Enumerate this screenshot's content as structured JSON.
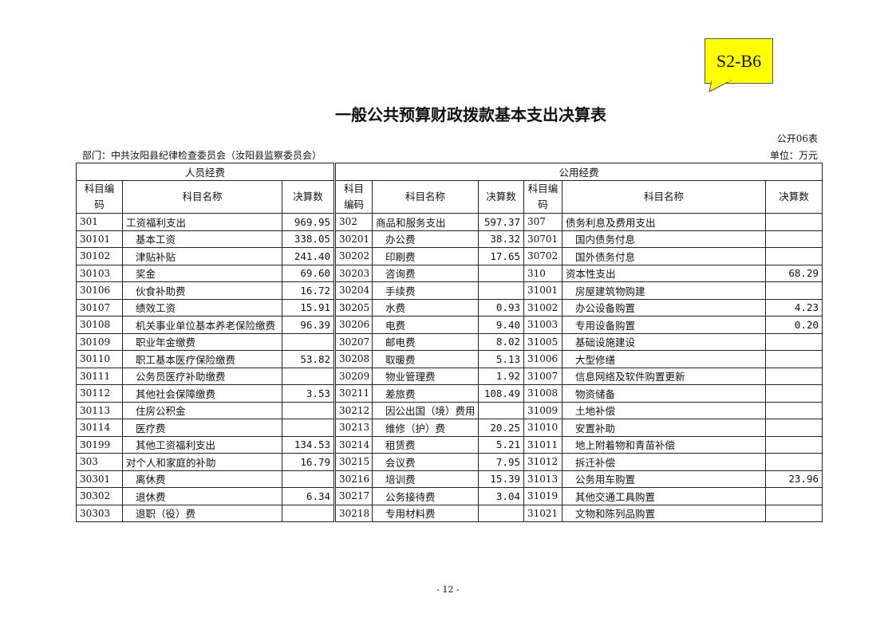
{
  "sticker": "S2-B6",
  "title": "一般公共预算财政拨款基本支出决算表",
  "table_no": "公开06表",
  "department": "部门：中共汝阳县纪律检查委员会（汝阳县监察委员会）",
  "unit": "单位：万元",
  "headers": {
    "personnel": "人员经费",
    "public": "公用经费",
    "code_l": "科目编码",
    "code": "科目编码",
    "name": "科目名称",
    "amount": "决算数"
  },
  "rows": [
    [
      [
        "301",
        "工资福利支出",
        "969.95"
      ],
      [
        "302",
        "商品和服务支出",
        "597.37"
      ],
      [
        "307",
        "债务利息及费用支出",
        ""
      ]
    ],
    [
      [
        "30101",
        "基本工资",
        "338.05"
      ],
      [
        "30201",
        "办公费",
        "38.32"
      ],
      [
        "30701",
        "国内债务付息",
        ""
      ]
    ],
    [
      [
        "30102",
        "津贴补贴",
        "241.40"
      ],
      [
        "30202",
        "印刷费",
        "17.65"
      ],
      [
        "30702",
        "国外债务付息",
        ""
      ]
    ],
    [
      [
        "30103",
        "奖金",
        "69.60"
      ],
      [
        "30203",
        "咨询费",
        ""
      ],
      [
        "310",
        "资本性支出",
        "68.29"
      ]
    ],
    [
      [
        "30106",
        "伙食补助费",
        "16.72"
      ],
      [
        "30204",
        "手续费",
        ""
      ],
      [
        "31001",
        "房屋建筑物购建",
        ""
      ]
    ],
    [
      [
        "30107",
        "绩效工资",
        "15.91"
      ],
      [
        "30205",
        "水费",
        "0.93"
      ],
      [
        "31002",
        "办公设备购置",
        "4.23"
      ]
    ],
    [
      [
        "30108",
        "机关事业单位基本养老保险缴费",
        "96.39"
      ],
      [
        "30206",
        "电费",
        "9.40"
      ],
      [
        "31003",
        "专用设备购置",
        "0.20"
      ]
    ],
    [
      [
        "30109",
        "职业年金缴费",
        ""
      ],
      [
        "30207",
        "邮电费",
        "8.02"
      ],
      [
        "31005",
        "基础设施建设",
        ""
      ]
    ],
    [
      [
        "30110",
        "职工基本医疗保险缴费",
        "53.82"
      ],
      [
        "30208",
        "取暖费",
        "5.13"
      ],
      [
        "31006",
        "大型修缮",
        ""
      ]
    ],
    [
      [
        "30111",
        "公务员医疗补助缴费",
        ""
      ],
      [
        "30209",
        "物业管理费",
        "1.92"
      ],
      [
        "31007",
        "信息网络及软件购置更新",
        ""
      ]
    ],
    [
      [
        "30112",
        "其他社会保障缴费",
        "3.53"
      ],
      [
        "30211",
        "差旅费",
        "108.49"
      ],
      [
        "31008",
        "物资储备",
        ""
      ]
    ],
    [
      [
        "30113",
        "住房公积金",
        ""
      ],
      [
        "30212",
        "因公出国（境）费用",
        ""
      ],
      [
        "31009",
        "土地补偿",
        ""
      ]
    ],
    [
      [
        "30114",
        "医疗费",
        ""
      ],
      [
        "30213",
        "维修（护）费",
        "20.25"
      ],
      [
        "31010",
        "安置补助",
        ""
      ]
    ],
    [
      [
        "30199",
        "其他工资福利支出",
        "134.53"
      ],
      [
        "30214",
        "租赁费",
        "5.21"
      ],
      [
        "31011",
        "地上附着物和青苗补偿",
        ""
      ]
    ],
    [
      [
        "303",
        "对个人和家庭的补助",
        "16.79"
      ],
      [
        "30215",
        "会议费",
        "7.95"
      ],
      [
        "31012",
        "拆迁补偿",
        ""
      ]
    ],
    [
      [
        "30301",
        "离休费",
        ""
      ],
      [
        "30216",
        "培训费",
        "15.39"
      ],
      [
        "31013",
        "公务用车购置",
        "23.96"
      ]
    ],
    [
      [
        "30302",
        "退休费",
        "6.34"
      ],
      [
        "30217",
        "公务接待费",
        "3.04"
      ],
      [
        "31019",
        "其他交通工具购置",
        ""
      ]
    ],
    [
      [
        "30303",
        "退职（役）费",
        ""
      ],
      [
        "30218",
        "专用材料费",
        ""
      ],
      [
        "31021",
        "文物和陈列品购置",
        ""
      ]
    ]
  ],
  "footer": "- 12 -"
}
